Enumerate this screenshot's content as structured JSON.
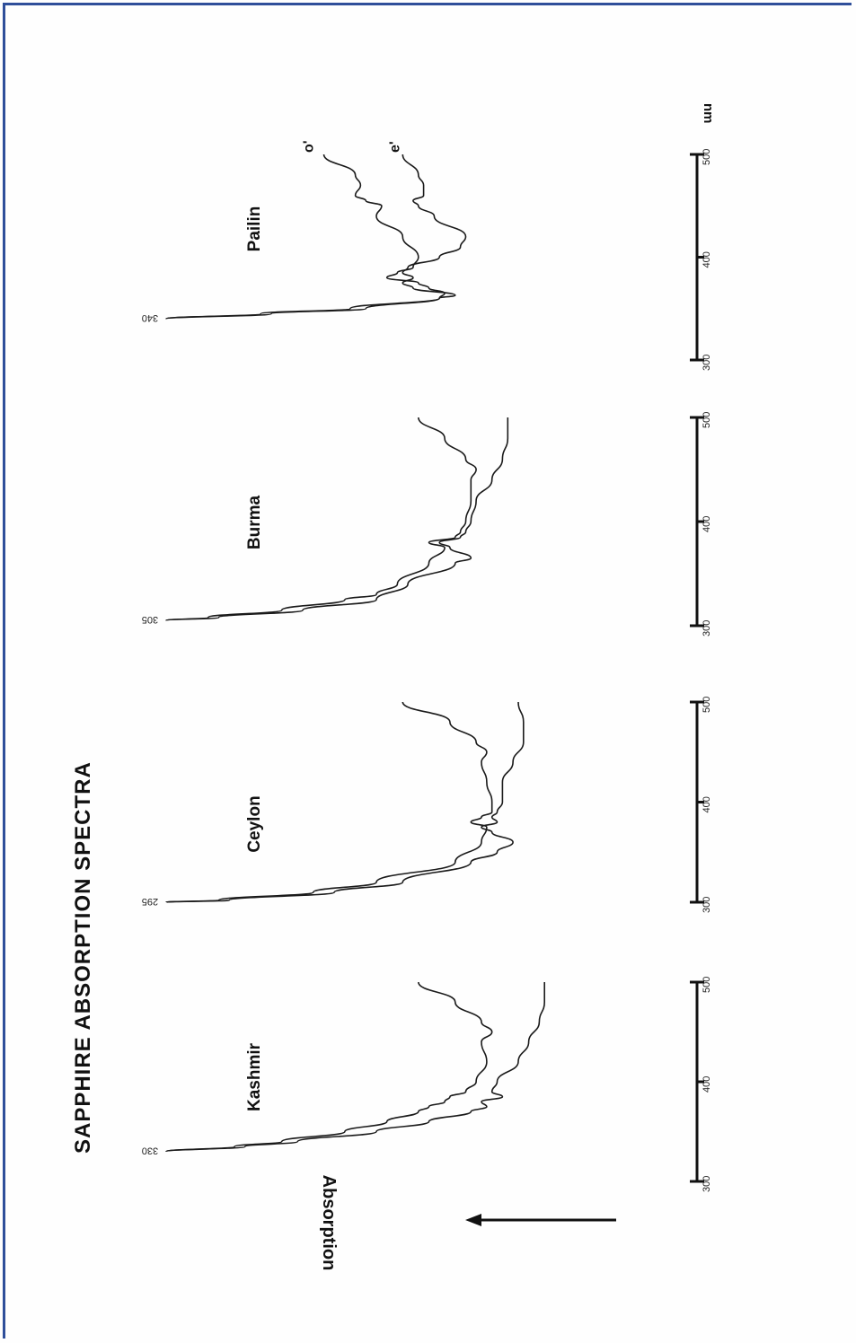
{
  "chart_data": {
    "type": "line",
    "title": "SAPPHIRE ABSORPTION SPECTRA",
    "ylabel": "Absorption",
    "xlabel": "nm",
    "x_ticks": [
      300,
      400,
      500
    ],
    "xlim": [
      300,
      500
    ],
    "panels": [
      {
        "name": "Kashmir",
        "peak_label": "330",
        "series": [
          {
            "x": [
              330,
              335,
              340,
              350,
              360,
              370,
              375,
              380,
              385,
              390,
              400,
              420,
              440,
              450,
              460,
              480,
              500
            ],
            "y": [
              1.0,
              0.87,
              0.78,
              0.66,
              0.58,
              0.52,
              0.5,
              0.47,
              0.46,
              0.43,
              0.41,
              0.39,
              0.4,
              0.38,
              0.4,
              0.45,
              0.52
            ]
          },
          {
            "x": [
              330,
              335,
              340,
              350,
              360,
              370,
              375,
              380,
              385,
              390,
              400,
              420,
              440,
              460,
              480,
              500
            ],
            "y": [
              1.0,
              0.85,
              0.75,
              0.6,
              0.5,
              0.42,
              0.39,
              0.4,
              0.36,
              0.38,
              0.37,
              0.33,
              0.31,
              0.29,
              0.28,
              0.28
            ]
          }
        ]
      },
      {
        "name": "Ceylon",
        "peak_label": "295",
        "series": [
          {
            "x": [
              300,
              302,
              310,
              320,
              340,
              360,
              375,
              380,
              385,
              390,
              400,
              420,
              440,
              450,
              460,
              480,
              500
            ],
            "y": [
              1.0,
              0.9,
              0.72,
              0.6,
              0.45,
              0.4,
              0.39,
              0.42,
              0.4,
              0.38,
              0.38,
              0.39,
              0.4,
              0.39,
              0.41,
              0.46,
              0.55
            ]
          },
          {
            "x": [
              300,
              302,
              310,
              320,
              340,
              350,
              360,
              370,
              375,
              380,
              385,
              390,
              400,
              420,
              440,
              460,
              480,
              500
            ],
            "y": [
              1.0,
              0.88,
              0.68,
              0.55,
              0.42,
              0.37,
              0.34,
              0.38,
              0.4,
              0.37,
              0.38,
              0.37,
              0.36,
              0.36,
              0.34,
              0.32,
              0.32,
              0.33
            ]
          }
        ]
      },
      {
        "name": "Burma",
        "peak_label": "305",
        "series": [
          {
            "x": [
              305,
              308,
              315,
              325,
              330,
              340,
              360,
              375,
              380,
              385,
              390,
              400,
              420,
              440,
              450,
              460,
              480,
              500
            ],
            "y": [
              1.0,
              0.92,
              0.78,
              0.66,
              0.6,
              0.56,
              0.5,
              0.47,
              0.5,
              0.45,
              0.44,
              0.43,
              0.42,
              0.42,
              0.41,
              0.43,
              0.47,
              0.52
            ]
          },
          {
            "x": [
              305,
              308,
              315,
              325,
              340,
              360,
              365,
              375,
              380,
              385,
              390,
              400,
              420,
              440,
              460,
              480,
              500
            ],
            "y": [
              1.0,
              0.9,
              0.74,
              0.6,
              0.54,
              0.45,
              0.42,
              0.46,
              0.48,
              0.44,
              0.43,
              0.42,
              0.41,
              0.38,
              0.36,
              0.35,
              0.35
            ]
          }
        ]
      },
      {
        "name": "Pailin",
        "peak_label": "340",
        "series": [
          {
            "name": "o'",
            "x": [
              340,
              345,
              350,
              360,
              365,
              370,
              375,
              380,
              385,
              390,
              400,
              420,
              440,
              450,
              455,
              460,
              470,
              480,
              500
            ],
            "y": [
              1.0,
              0.82,
              0.65,
              0.48,
              0.47,
              0.5,
              0.52,
              0.58,
              0.56,
              0.53,
              0.52,
              0.55,
              0.6,
              0.59,
              0.62,
              0.64,
              0.63,
              0.64,
              0.7
            ]
          },
          {
            "name": "e'",
            "x": [
              340,
              345,
              350,
              360,
              363,
              370,
              375,
              380,
              385,
              390,
              400,
              410,
              420,
              440,
              450,
              455,
              460,
              470,
              480,
              500
            ],
            "y": [
              1.0,
              0.8,
              0.62,
              0.48,
              0.45,
              0.53,
              0.55,
              0.53,
              0.55,
              0.54,
              0.48,
              0.44,
              0.43,
              0.49,
              0.52,
              0.53,
              0.51,
              0.51,
              0.52,
              0.55
            ]
          }
        ]
      }
    ]
  }
}
